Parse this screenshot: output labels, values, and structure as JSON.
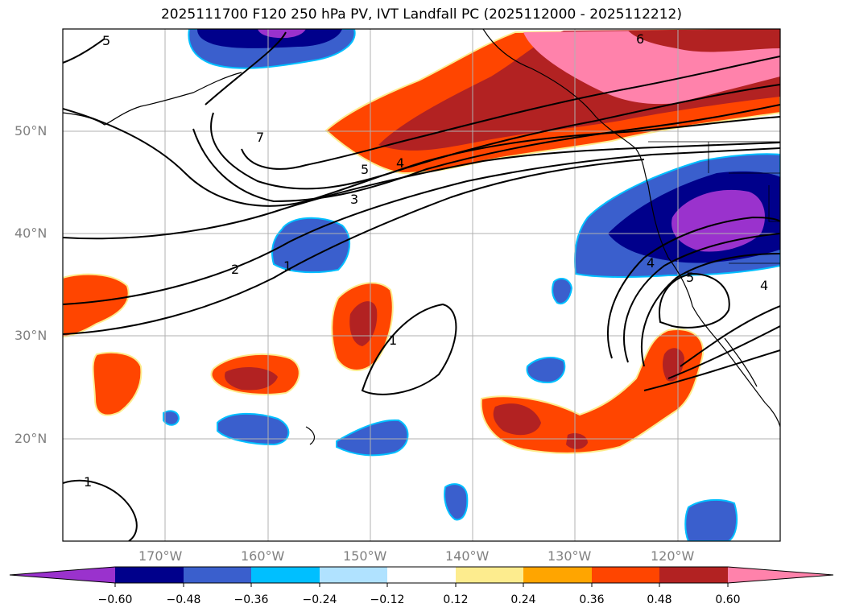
{
  "title": "2025111700 F120 250 hPa PV, IVT Landfall PC (2025112000 - 2025112212)",
  "map": {
    "lon_range": [
      -180,
      -110
    ],
    "lat_range": [
      10,
      60
    ],
    "lat_labels": [
      "50°N",
      "40°N",
      "30°N",
      "20°N"
    ],
    "lon_labels": [
      "170°W",
      "160°W",
      "150°W",
      "140°W",
      "130°W",
      "120°W"
    ],
    "contour_labels": [
      "5",
      "7",
      "5",
      "4",
      "3",
      "2",
      "1",
      "1",
      "6",
      "4",
      "5",
      "4",
      "1"
    ]
  },
  "colorbar": {
    "colors": [
      "#9a32cd",
      "#00008b",
      "#3a5fcd",
      "#00bfff",
      "#b0e2ff",
      "#ffffff",
      "#fdec8e",
      "#ffa500",
      "#ff4500",
      "#b22222",
      "#ff82ab"
    ],
    "ticks": [
      "−0.60",
      "−0.48",
      "−0.36",
      "−0.24",
      "−0.12",
      "0.12",
      "0.24",
      "0.36",
      "0.48",
      "0.60"
    ]
  }
}
